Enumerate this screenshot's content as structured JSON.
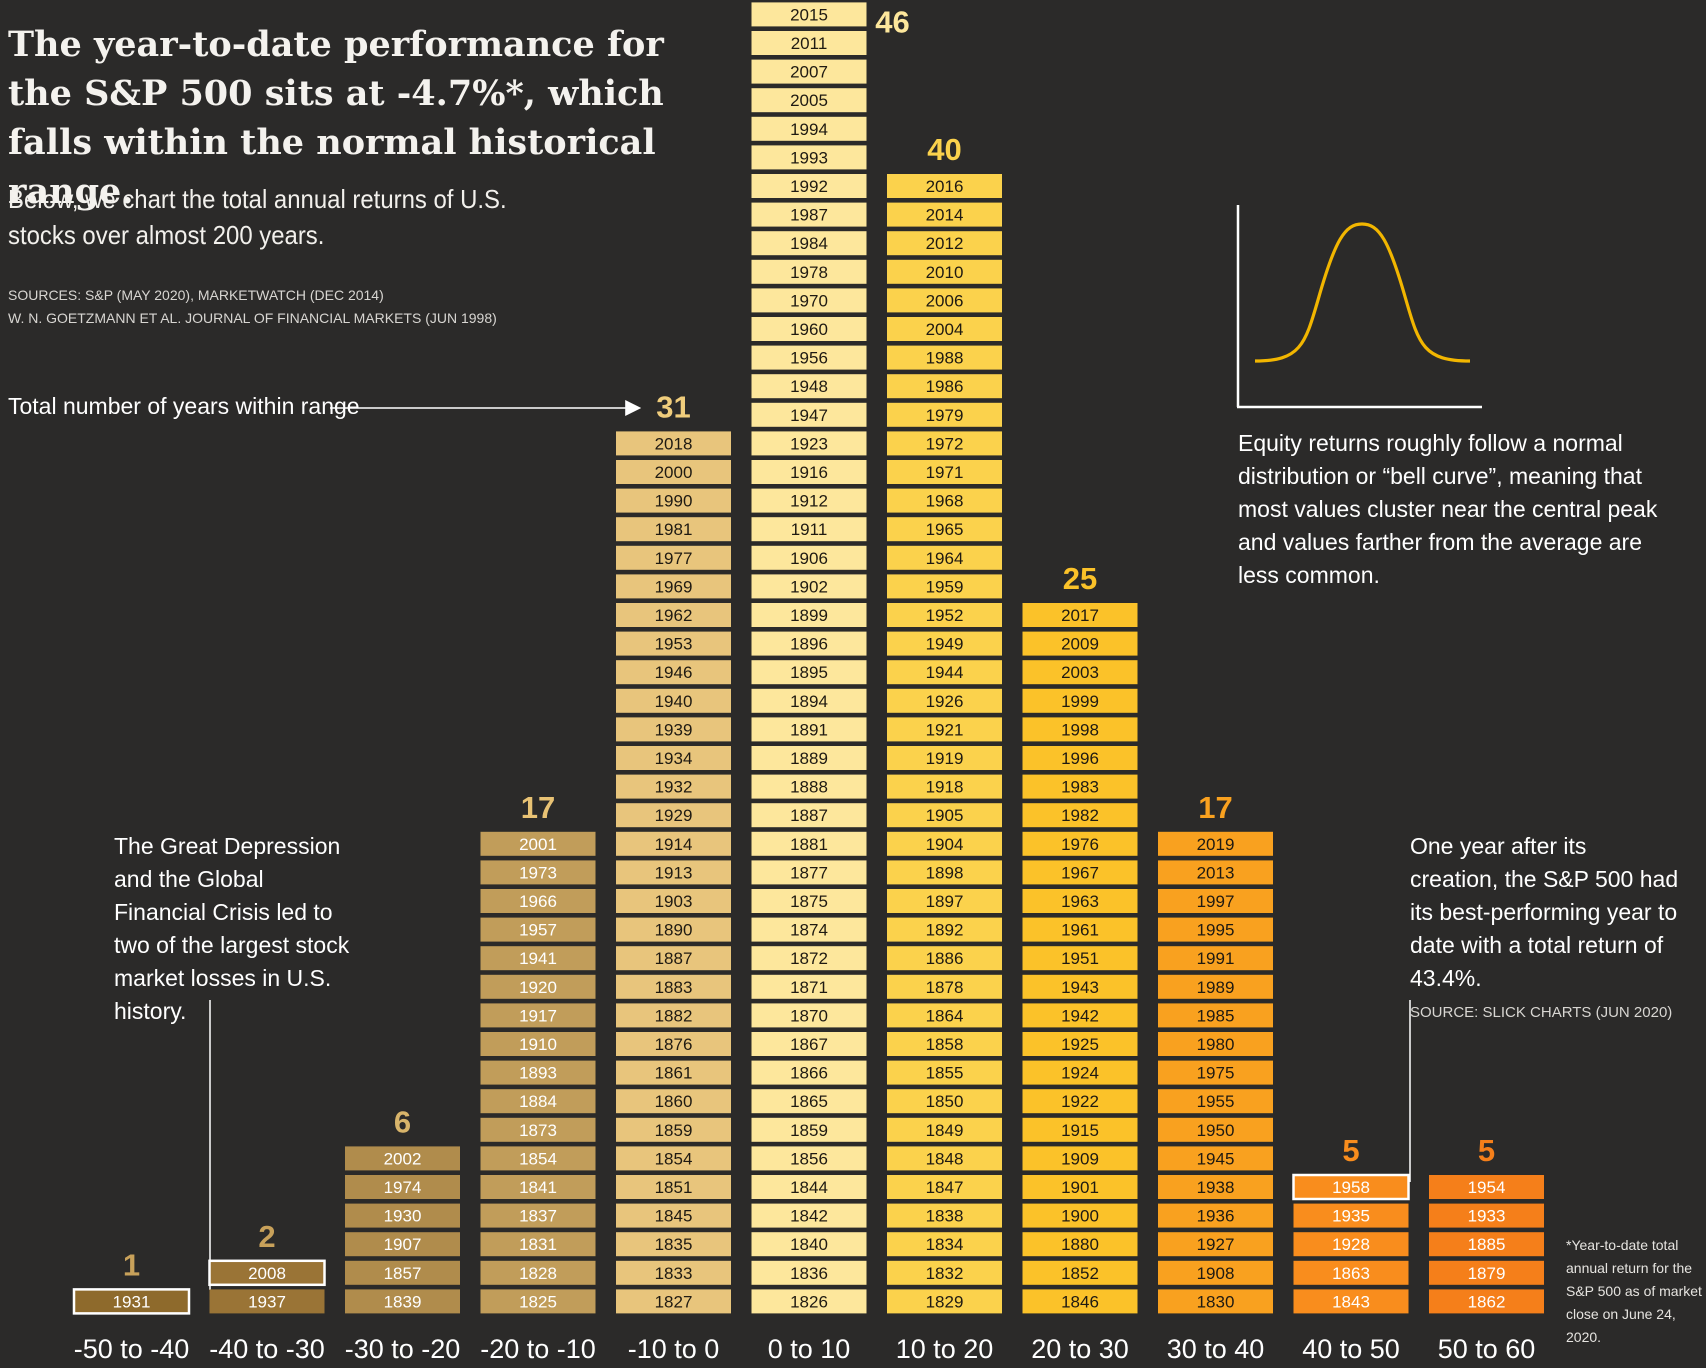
{
  "headline": "The year-to-date performance for the S&P 500 sits at -4.7%*, which falls within the normal historical range.",
  "subtitle": "Below, we chart the total annual returns of U.S. stocks over almost 200 years.",
  "sources": [
    "SOURCES: S&P (MAY 2020), MARKETWATCH (DEC 2014)",
    "W. N. GOETZMANN ET AL. JOURNAL OF FINANCIAL MARKETS (JUN 1998)"
  ],
  "range_label": "Total number of years within range",
  "bell_curve_note": "Equity returns roughly follow a normal distribution or “bell curve”, meaning that most values cluster near the central peak and values farther from the average are less common.",
  "depression_note": "The Great Depression and the Global Financial Crisis led to two of the largest stock market losses in U.S. history.",
  "best_year_note": "One year after its creation, the S&P 500 had its best-performing year to date with a total return of 43.4%.",
  "best_year_source": "SOURCE: SLICK CHARTS (JUN 2020)",
  "footnote": "*Year-to-date total annual return for the S&P 500 as of market close on June 24, 2020.",
  "colors": {
    "background": "#2b2a29",
    "text": "#ffffff",
    "bell_curve": "#f2b600",
    "highlight_outline": "#ffffff"
  },
  "chart_data": {
    "type": "bar",
    "title": "",
    "xlabel": "",
    "ylabel": "",
    "grid": false,
    "categories": [
      "-50 to -40",
      "-40 to -30",
      "-30 to -20",
      "-20 to -10",
      "-10 to 0",
      "0 to 10",
      "10 to 20",
      "20 to 30",
      "30 to 40",
      "40 to 50",
      "50 to 60"
    ],
    "values": [
      1,
      2,
      6,
      17,
      31,
      46,
      40,
      25,
      17,
      5,
      5
    ],
    "bar_colors": [
      "#8e6a2c",
      "#9a7436",
      "#b08c4c",
      "#c19d5a",
      "#e8c57c",
      "#fde79c",
      "#fbd24c",
      "#fbc229",
      "#f9a11f",
      "#f98d1d",
      "#f57f1a"
    ],
    "block_text_colors": [
      "#ffffff",
      "#ffffff",
      "#ffffff",
      "#ffffff",
      "#1f1a12",
      "#1f1a12",
      "#1f1a12",
      "#1f1a12",
      "#1f1a12",
      "#ffffff",
      "#ffffff"
    ],
    "count_colors": [
      "#c8a15a",
      "#c8a15a",
      "#d8b46a",
      "#e8c274",
      "#f0cd7c",
      "#fde79c",
      "#fbd24c",
      "#fbc229",
      "#f9a11f",
      "#f98d1d",
      "#f57f1a"
    ],
    "highlighted_years": [
      "1931",
      "2008",
      "1958"
    ],
    "years": [
      [
        "1931"
      ],
      [
        "2008",
        "1937"
      ],
      [
        "2002",
        "1974",
        "1930",
        "1907",
        "1857",
        "1839"
      ],
      [
        "2001",
        "1973",
        "1966",
        "1957",
        "1941",
        "1920",
        "1917",
        "1910",
        "1893",
        "1884",
        "1873",
        "1854",
        "1841",
        "1837",
        "1831",
        "1828",
        "1825"
      ],
      [
        "2018",
        "2000",
        "1990",
        "1981",
        "1977",
        "1969",
        "1962",
        "1953",
        "1946",
        "1940",
        "1939",
        "1934",
        "1932",
        "1929",
        "1914",
        "1913",
        "1903",
        "1890",
        "1887",
        "1883",
        "1882",
        "1876",
        "1861",
        "1860",
        "1859",
        "1854",
        "1851",
        "1845",
        "1835",
        "1833",
        "1827"
      ],
      [
        "2015",
        "2011",
        "2007",
        "2005",
        "1994",
        "1993",
        "1992",
        "1987",
        "1984",
        "1978",
        "1970",
        "1960",
        "1956",
        "1948",
        "1947",
        "1923",
        "1916",
        "1912",
        "1911",
        "1906",
        "1902",
        "1899",
        "1896",
        "1895",
        "1894",
        "1891",
        "1889",
        "1888",
        "1887",
        "1881",
        "1877",
        "1875",
        "1874",
        "1872",
        "1871",
        "1870",
        "1867",
        "1866",
        "1865",
        "1859",
        "1856",
        "1844",
        "1842",
        "1840",
        "1836",
        "1826"
      ],
      [
        "2016",
        "2014",
        "2012",
        "2010",
        "2006",
        "2004",
        "1988",
        "1986",
        "1979",
        "1972",
        "1971",
        "1968",
        "1965",
        "1964",
        "1959",
        "1952",
        "1949",
        "1944",
        "1926",
        "1921",
        "1919",
        "1918",
        "1905",
        "1904",
        "1898",
        "1897",
        "1892",
        "1886",
        "1878",
        "1864",
        "1858",
        "1855",
        "1850",
        "1849",
        "1848",
        "1847",
        "1838",
        "1834",
        "1832",
        "1829"
      ],
      [
        "2017",
        "2009",
        "2003",
        "1999",
        "1998",
        "1996",
        "1983",
        "1982",
        "1976",
        "1967",
        "1963",
        "1961",
        "1951",
        "1943",
        "1942",
        "1925",
        "1924",
        "1922",
        "1915",
        "1909",
        "1901",
        "1900",
        "1880",
        "1852",
        "1846"
      ],
      [
        "2019",
        "2013",
        "1997",
        "1995",
        "1991",
        "1989",
        "1985",
        "1980",
        "1975",
        "1955",
        "1950",
        "1945",
        "1938",
        "1936",
        "1927",
        "1908",
        "1830"
      ],
      [
        "1958",
        "1935",
        "1928",
        "1863",
        "1843"
      ],
      [
        "1954",
        "1933",
        "1885",
        "1879",
        "1862"
      ]
    ]
  }
}
